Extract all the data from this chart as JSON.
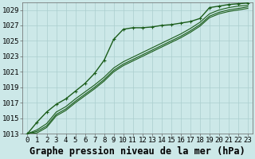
{
  "title": "Graphe pression niveau de la mer (hPa)",
  "background_color": "#cce8e8",
  "grid_color": "#aacece",
  "line_color": "#1a5c1a",
  "xlim": [
    -0.5,
    23.5
  ],
  "ylim": [
    1013,
    1030
  ],
  "yticks": [
    1013,
    1015,
    1017,
    1019,
    1021,
    1023,
    1025,
    1027,
    1029
  ],
  "xticks": [
    0,
    1,
    2,
    3,
    4,
    5,
    6,
    7,
    8,
    9,
    10,
    11,
    12,
    13,
    14,
    15,
    16,
    17,
    18,
    19,
    20,
    21,
    22,
    23
  ],
  "series_marked": [
    1013.0,
    1014.5,
    1015.8,
    1016.8,
    1017.5,
    1018.5,
    1019.5,
    1020.8,
    1022.5,
    1025.2,
    1026.5,
    1026.7,
    1026.7,
    1026.8,
    1027.0,
    1027.1,
    1027.3,
    1027.5,
    1027.9,
    1029.3,
    1029.5,
    1029.7,
    1029.8,
    1029.9
  ],
  "series_plain": [
    [
      1013.0,
      1013.5,
      1014.3,
      1015.8,
      1016.5,
      1017.5,
      1018.4,
      1019.3,
      1020.3,
      1021.5,
      1022.3,
      1022.9,
      1023.5,
      1024.1,
      1024.7,
      1025.3,
      1025.9,
      1026.6,
      1027.4,
      1028.5,
      1029.0,
      1029.3,
      1029.5,
      1029.6
    ],
    [
      1013.0,
      1013.3,
      1014.0,
      1015.5,
      1016.2,
      1017.2,
      1018.1,
      1019.0,
      1020.0,
      1021.2,
      1022.0,
      1022.6,
      1023.2,
      1023.8,
      1024.4,
      1025.0,
      1025.6,
      1026.3,
      1027.1,
      1028.2,
      1028.7,
      1029.0,
      1029.2,
      1029.4
    ],
    [
      1013.0,
      1013.1,
      1013.8,
      1015.3,
      1016.0,
      1017.0,
      1017.9,
      1018.8,
      1019.8,
      1021.0,
      1021.8,
      1022.4,
      1023.0,
      1023.6,
      1024.2,
      1024.8,
      1025.4,
      1026.1,
      1026.9,
      1028.0,
      1028.5,
      1028.8,
      1029.0,
      1029.2
    ]
  ],
  "tick_fontsize": 6.5,
  "xlabel_fontsize": 8.5
}
